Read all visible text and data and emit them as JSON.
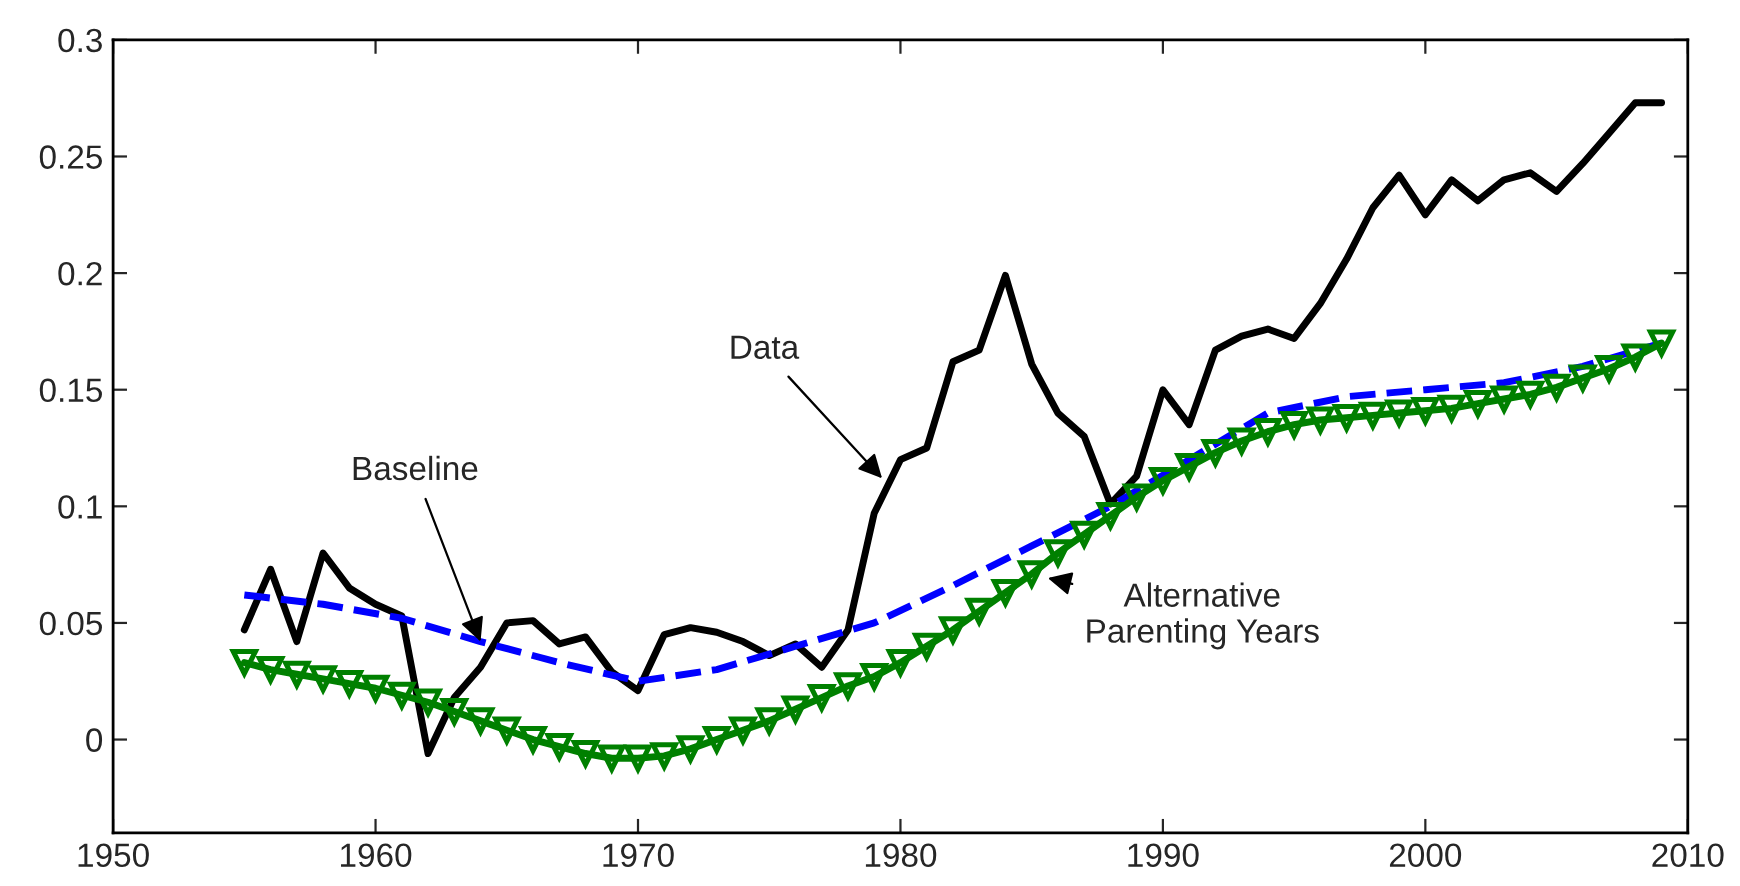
{
  "chart_data": {
    "type": "line",
    "xlim": [
      1950,
      2010
    ],
    "ylim": [
      -0.04,
      0.3
    ],
    "xticks": [
      1950,
      1960,
      1970,
      1980,
      1990,
      2000,
      2010
    ],
    "yticks": [
      0,
      0.05,
      0.1,
      0.15,
      0.2,
      0.25,
      0.3
    ],
    "grid": false,
    "legend": false,
    "series": [
      {
        "color": "#000000",
        "line_style": "solid",
        "marker": "none",
        "x": [
          1955,
          1956,
          1957,
          1958,
          1959,
          1960,
          1961,
          1962,
          1963,
          1964,
          1965,
          1966,
          1967,
          1968,
          1969,
          1970,
          1971,
          1972,
          1973,
          1974,
          1975,
          1976,
          1977,
          1978,
          1979,
          1980,
          1981,
          1982,
          1983,
          1984,
          1985,
          1986,
          1987,
          1988,
          1989,
          1990,
          1991,
          1992,
          1993,
          1994,
          1995,
          1996,
          1997,
          1998,
          1999,
          2000,
          2001,
          2002,
          2003,
          2004,
          2005,
          2006,
          2007,
          2008,
          2009
        ],
        "values": [
          0.047,
          0.073,
          0.042,
          0.08,
          0.065,
          0.058,
          0.053,
          -0.006,
          0.018,
          0.031,
          0.05,
          0.051,
          0.041,
          0.044,
          0.029,
          0.021,
          0.045,
          0.048,
          0.046,
          0.042,
          0.036,
          0.041,
          0.031,
          0.047,
          0.097,
          0.12,
          0.125,
          0.162,
          0.167,
          0.199,
          0.161,
          0.14,
          0.13,
          0.101,
          0.113,
          0.15,
          0.135,
          0.167,
          0.173,
          0.176,
          0.172,
          0.187,
          0.206,
          0.228,
          0.242,
          0.225,
          0.24,
          0.231,
          0.24,
          0.243,
          0.235,
          0.247,
          0.26,
          0.273,
          0.273
        ]
      },
      {
        "color": "#0000ff",
        "line_style": "dashed",
        "marker": "none",
        "x": [
          1955,
          1958,
          1961,
          1964,
          1967,
          1970,
          1973,
          1976,
          1979,
          1982,
          1985,
          1988,
          1991,
          1994,
          1997,
          2000,
          2003,
          2006,
          2009
        ],
        "values": [
          0.062,
          0.058,
          0.052,
          0.042,
          0.033,
          0.025,
          0.03,
          0.04,
          0.05,
          0.066,
          0.083,
          0.1,
          0.12,
          0.14,
          0.147,
          0.15,
          0.153,
          0.16,
          0.17
        ]
      },
      {
        "color": "#008000",
        "line_style": "solid",
        "marker": "triangle",
        "x": [
          1955,
          1956,
          1957,
          1958,
          1959,
          1960,
          1961,
          1962,
          1963,
          1964,
          1965,
          1966,
          1967,
          1968,
          1969,
          1970,
          1971,
          1972,
          1973,
          1974,
          1975,
          1976,
          1977,
          1978,
          1979,
          1980,
          1981,
          1982,
          1983,
          1984,
          1985,
          1986,
          1987,
          1988,
          1989,
          1990,
          1991,
          1992,
          1993,
          1994,
          1995,
          1996,
          1997,
          1998,
          1999,
          2000,
          2001,
          2002,
          2003,
          2004,
          2005,
          2006,
          2007,
          2008,
          2009
        ],
        "values": [
          0.033,
          0.03,
          0.028,
          0.026,
          0.024,
          0.022,
          0.019,
          0.016,
          0.012,
          0.008,
          0.004,
          0.0,
          -0.003,
          -0.006,
          -0.008,
          -0.008,
          -0.007,
          -0.004,
          0.0,
          0.004,
          0.008,
          0.013,
          0.018,
          0.023,
          0.027,
          0.033,
          0.04,
          0.047,
          0.055,
          0.063,
          0.071,
          0.08,
          0.088,
          0.096,
          0.104,
          0.111,
          0.117,
          0.123,
          0.128,
          0.132,
          0.135,
          0.137,
          0.138,
          0.139,
          0.14,
          0.141,
          0.142,
          0.144,
          0.146,
          0.148,
          0.151,
          0.155,
          0.159,
          0.164,
          0.17
        ]
      }
    ],
    "annotations": [
      {
        "text": "Data",
        "x": 1979.3,
        "y": 0.112
      },
      {
        "text": "Baseline",
        "x": 1964,
        "y": 0.042
      },
      {
        "text": "Alternative\nParenting Years",
        "x": 1985,
        "y": 0.071
      }
    ]
  }
}
